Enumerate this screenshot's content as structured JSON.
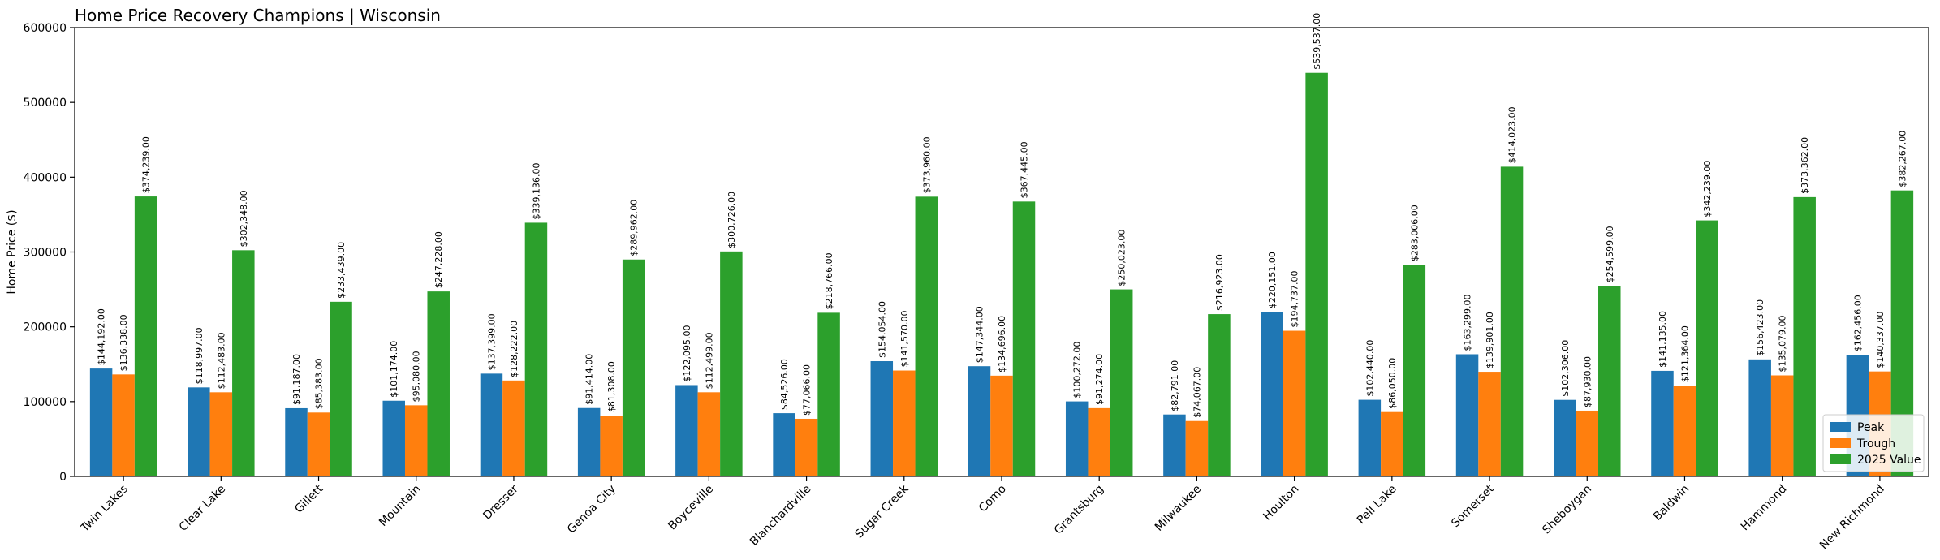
{
  "chart_data": {
    "type": "bar",
    "title": "Home Price Recovery Champions | Wisconsin",
    "xlabel": "",
    "ylabel": "Home Price ($)",
    "ylim": [
      0,
      600000
    ],
    "yticks": [
      0,
      100000,
      200000,
      300000,
      400000,
      500000,
      600000
    ],
    "ytick_labels": [
      "0",
      "100000",
      "200000",
      "300000",
      "400000",
      "500000",
      "600000"
    ],
    "grid": false,
    "legend_position": "lower-right",
    "categories": [
      "Twin Lakes",
      "Clear Lake",
      "Gillett",
      "Mountain",
      "Dresser",
      "Genoa City",
      "Boyceville",
      "Blanchardville",
      "Sugar Creek",
      "Como",
      "Grantsburg",
      "Milwaukee",
      "Houlton",
      "Pell Lake",
      "Somerset",
      "Sheboygan",
      "Baldwin",
      "Hammond",
      "New Richmond"
    ],
    "series": [
      {
        "name": "Peak",
        "color": "#1f77b4",
        "values": [
          144192,
          118997,
          91187,
          101174,
          137399,
          91414,
          122095,
          84526,
          154054,
          147344,
          100272,
          82791,
          220151,
          102440,
          163299,
          102306,
          141135,
          156423,
          162456
        ],
        "labels": [
          "$144,192.00",
          "$118,997.00",
          "$91,187.00",
          "$101,174.00",
          "$137,399.00",
          "$91,414.00",
          "$122,095.00",
          "$84,526.00",
          "$154,054.00",
          "$147,344.00",
          "$100,272.00",
          "$82,791.00",
          "$220,151.00",
          "$102,440.00",
          "$163,299.00",
          "$102,306.00",
          "$141,135.00",
          "$156,423.00",
          "$162,456.00"
        ]
      },
      {
        "name": "Trough",
        "color": "#ff7f0e",
        "values": [
          136338,
          112483,
          85383,
          95080,
          128222,
          81308,
          112499,
          77066,
          141570,
          134696,
          91274,
          74067,
          194737,
          86050,
          139901,
          87930,
          121364,
          135079,
          140337
        ],
        "labels": [
          "$136,338.00",
          "$112,483.00",
          "$85,383.00",
          "$95,080.00",
          "$128,222.00",
          "$81,308.00",
          "$112,499.00",
          "$77,066.00",
          "$141,570.00",
          "$134,696.00",
          "$91,274.00",
          "$74,067.00",
          "$194,737.00",
          "$86,050.00",
          "$139,901.00",
          "$87,930.00",
          "$121,364.00",
          "$135,079.00",
          "$140,337.00"
        ]
      },
      {
        "name": "2025 Value",
        "color": "#2ca02c",
        "values": [
          374239,
          302348,
          233439,
          247228,
          339136,
          289962,
          300726,
          218766,
          373960,
          367445,
          250023,
          216923,
          539537,
          283006,
          414023,
          254599,
          342239,
          373362,
          382267
        ],
        "labels": [
          "$374,239.00",
          "$302,348.00",
          "$233,439.00",
          "$247,228.00",
          "$339,136.00",
          "$289,962.00",
          "$300,726.00",
          "$218,766.00",
          "$373,960.00",
          "$367,445.00",
          "$250,023.00",
          "$216,923.00",
          "$539,537.00",
          "$283,006.00",
          "$414,023.00",
          "$254,599.00",
          "$342,239.00",
          "$373,362.00",
          "$382,267.00"
        ]
      }
    ]
  }
}
